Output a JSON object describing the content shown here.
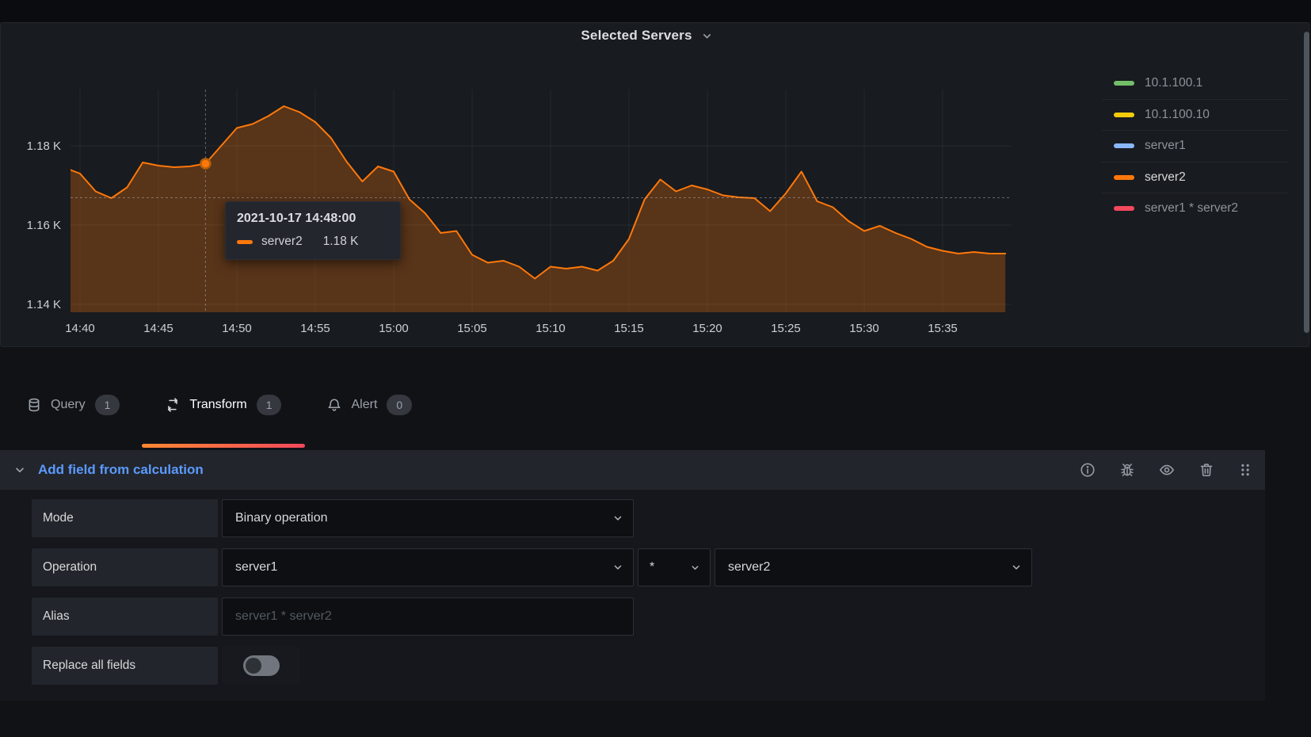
{
  "panel": {
    "title": "Selected Servers",
    "legend": [
      {
        "label": "10.1.100.1",
        "color": "#73bf69",
        "highlighted": false
      },
      {
        "label": "10.1.100.10",
        "color": "#f2cc0c",
        "highlighted": false
      },
      {
        "label": "server1",
        "color": "#8ab8ff",
        "highlighted": false
      },
      {
        "label": "server2",
        "color": "#ff780a",
        "highlighted": true
      },
      {
        "label": "server1 * server2",
        "color": "#f2495c",
        "highlighted": false
      }
    ],
    "tooltip": {
      "date": "2021-10-17 14:48:00",
      "series": "server2",
      "value": "1.18 K"
    }
  },
  "chart_data": {
    "type": "area",
    "title": "Selected Servers",
    "unit": "short (K)",
    "x": [
      "14:39",
      "14:40",
      "14:41",
      "14:42",
      "14:43",
      "14:44",
      "14:45",
      "14:46",
      "14:47",
      "14:48",
      "14:49",
      "14:50",
      "14:51",
      "14:52",
      "14:53",
      "14:54",
      "14:55",
      "14:56",
      "14:57",
      "14:58",
      "14:59",
      "15:00",
      "15:01",
      "15:02",
      "15:03",
      "15:04",
      "15:05",
      "15:06",
      "15:07",
      "15:08",
      "15:09",
      "15:10",
      "15:11",
      "15:12",
      "15:13",
      "15:14",
      "15:15",
      "15:16",
      "15:17",
      "15:18",
      "15:19",
      "15:20",
      "15:21",
      "15:22",
      "15:23",
      "15:24",
      "15:25",
      "15:26",
      "15:27",
      "15:28",
      "15:29",
      "15:30",
      "15:31",
      "15:32",
      "15:33",
      "15:34",
      "15:35",
      "15:36",
      "15:37",
      "15:38",
      "15:39"
    ],
    "series": [
      {
        "name": "server2",
        "color": "#ff780a",
        "values": [
          1174.5,
          1173.0,
          1168.5,
          1166.8,
          1169.5,
          1175.8,
          1175.0,
          1174.6,
          1174.8,
          1175.5,
          1180.0,
          1184.5,
          1185.5,
          1187.5,
          1190.0,
          1188.5,
          1186.0,
          1182.0,
          1176.0,
          1171.0,
          1174.8,
          1173.5,
          1166.5,
          1163.0,
          1158.0,
          1158.5,
          1152.5,
          1150.5,
          1151.0,
          1149.5,
          1146.5,
          1149.5,
          1149.0,
          1149.5,
          1148.5,
          1151.0,
          1156.5,
          1166.5,
          1171.5,
          1168.5,
          1170.0,
          1169.0,
          1167.5,
          1167.0,
          1166.8,
          1163.5,
          1168.0,
          1173.5,
          1166.0,
          1164.5,
          1161.0,
          1158.5,
          1159.8,
          1158.0,
          1156.5,
          1154.5,
          1153.5,
          1152.8,
          1153.2,
          1152.8,
          1152.8
        ]
      }
    ],
    "xticks": [
      "14:40",
      "14:45",
      "14:50",
      "14:55",
      "15:00",
      "15:05",
      "15:10",
      "15:15",
      "15:20",
      "15:25",
      "15:30",
      "15:35"
    ],
    "yticks": [
      {
        "value": 1140,
        "label": "1.14 K"
      },
      {
        "value": 1160,
        "label": "1.16 K"
      },
      {
        "value": 1180,
        "label": "1.18 K"
      }
    ],
    "ylim": [
      1138,
      1194
    ],
    "grid": true,
    "legend_position": "right",
    "hover": {
      "time": "14:48",
      "value": 1175.5,
      "cursor_value": 1166.9,
      "date": "2021-10-17 14:48:00",
      "series": "server2",
      "value_label": "1.18 K"
    }
  },
  "tabs": [
    {
      "label": "Query",
      "count": 1,
      "icon": "database-icon",
      "active": false
    },
    {
      "label": "Transform",
      "count": 1,
      "icon": "process-icon",
      "active": true
    },
    {
      "label": "Alert",
      "count": 0,
      "icon": "bell-icon",
      "active": false
    }
  ],
  "transform": {
    "title": "Add field from calculation",
    "header_icons": [
      "info-circle",
      "debug",
      "preview",
      "delete",
      "drag-handle"
    ],
    "rows": {
      "mode": {
        "label": "Mode",
        "value": "Binary operation"
      },
      "operation": {
        "label": "Operation",
        "left": "server1",
        "operator": "*",
        "right": "server2"
      },
      "alias": {
        "label": "Alias",
        "placeholder": "server1 * server2"
      },
      "replace": {
        "label": "Replace all fields",
        "enabled": false
      }
    }
  },
  "colors": {
    "accent_orange": "#ff780a",
    "tab_underline_from": "#ff8833",
    "tab_underline_to": "#f2495c",
    "link_blue": "#5b9aff",
    "panel_bg": "#181b1f",
    "card_header_bg": "#22252b",
    "input_bg": "#0d0f13"
  }
}
